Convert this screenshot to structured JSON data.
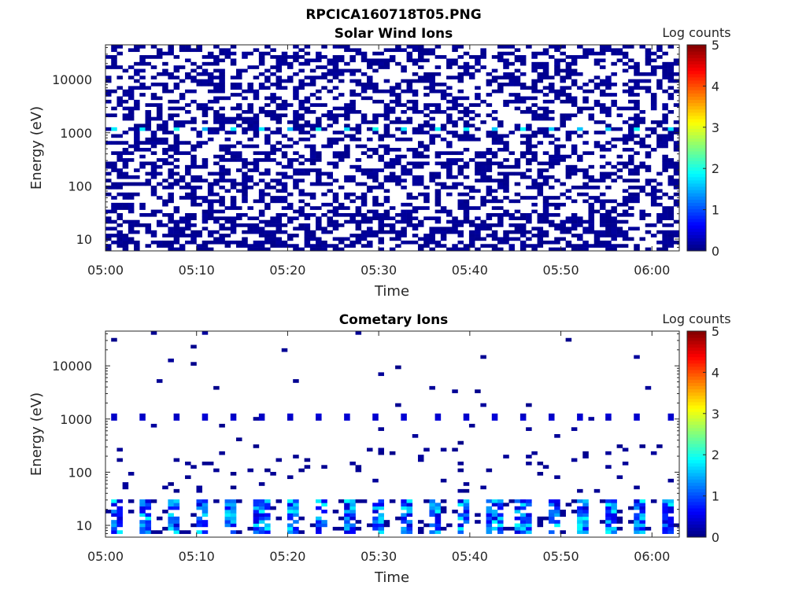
{
  "figure_title": "RPCICA160718T05.PNG",
  "colorbar": {
    "title": "Log counts",
    "ticks": [
      0,
      1,
      2,
      3,
      4,
      5
    ],
    "range": [
      0,
      5
    ],
    "colormap": "jet"
  },
  "chart_data": [
    {
      "type": "heatmap",
      "title": "Solar Wind Ions",
      "xlabel": "Time",
      "ylabel": "Energy (eV)",
      "x_ticks": [
        "05:00",
        "05:10",
        "05:20",
        "05:30",
        "05:40",
        "05:50",
        "06:00"
      ],
      "x_tick_minutes": [
        0,
        10,
        20,
        30,
        40,
        50,
        60
      ],
      "xlim_minutes": [
        0,
        63
      ],
      "y_scale": "log",
      "y_ticks": [
        10,
        100,
        1000,
        10000
      ],
      "y_tick_labels": [
        "10",
        "100",
        "1000",
        "10000"
      ],
      "ylim": [
        6,
        45000
      ],
      "description_of_content": "Sparse low-count (log counts ~0) speckle over all energies; periodic bright spots (~1.5-2 log counts) near 1000-1200 eV every ~3.2 min; dense low-energy patches below ~30 eV.",
      "bright_band": {
        "energy_eV": 1150,
        "level": 1.8,
        "period_minutes": 3.2,
        "first_minute": 0.8
      }
    },
    {
      "type": "heatmap",
      "title": "Cometary Ions",
      "xlabel": "Time",
      "ylabel": "Energy (eV)",
      "x_ticks": [
        "05:00",
        "05:10",
        "05:20",
        "05:30",
        "05:40",
        "05:50",
        "06:00"
      ],
      "x_tick_minutes": [
        0,
        10,
        20,
        30,
        40,
        50,
        60
      ],
      "xlim_minutes": [
        0,
        63
      ],
      "y_scale": "log",
      "y_ticks": [
        10,
        100,
        1000,
        10000
      ],
      "y_tick_labels": [
        "10",
        "100",
        "1000",
        "10000"
      ],
      "ylim": [
        6,
        45000
      ],
      "description_of_content": "Very sparse speckle at high energies; line of dots near 1000-1200 eV every ~3.2 min; strong periodic bursts (up to ~2 log counts) between ~8 and ~30 eV every ~3.2 min.",
      "bright_band": {
        "energy_eV": 1100,
        "level": 0.4,
        "period_minutes": 3.2,
        "first_minute": 0.8
      },
      "low_energy_bursts": {
        "energy_range_eV": [
          7,
          30
        ],
        "peak_level": 1.9,
        "period_minutes": 3.2,
        "first_minute": 0.5
      }
    }
  ]
}
